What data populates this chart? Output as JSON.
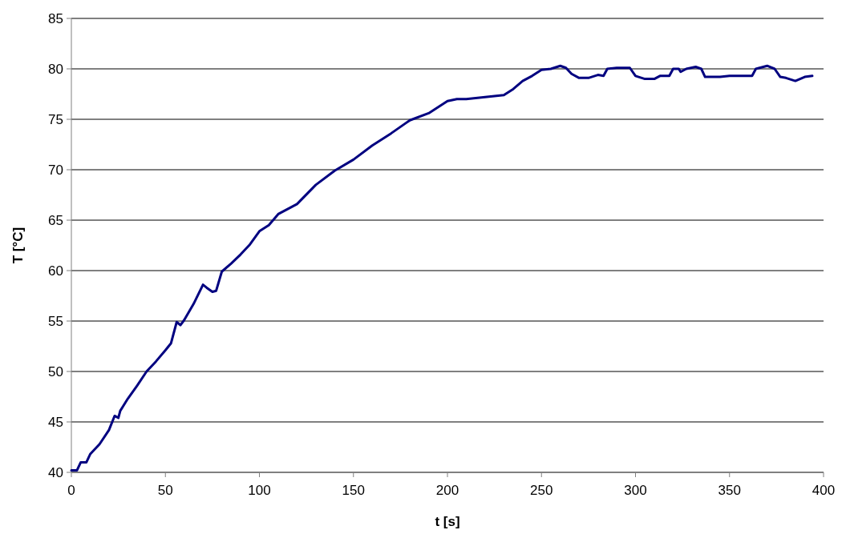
{
  "chart_data": {
    "type": "line",
    "xlabel": "t [s]",
    "ylabel": "T [°C]",
    "xlim": [
      0,
      400
    ],
    "xticks": [
      0,
      50,
      100,
      150,
      200,
      250,
      300,
      350,
      400
    ],
    "ylim": [
      40,
      85
    ],
    "yticks": [
      40,
      45,
      50,
      55,
      60,
      65,
      70,
      75,
      80,
      85
    ],
    "grid": "y",
    "marker": "none",
    "line_style": "solid",
    "x": [
      0,
      3,
      5,
      8,
      10,
      15,
      20,
      23,
      25,
      26,
      30,
      35,
      40,
      45,
      50,
      53,
      56,
      58,
      60,
      65,
      70,
      72,
      75,
      77,
      80,
      85,
      90,
      95,
      100,
      105,
      110,
      120,
      130,
      140,
      150,
      160,
      170,
      180,
      190,
      200,
      205,
      210,
      220,
      230,
      235,
      240,
      245,
      250,
      255,
      260,
      263,
      266,
      270,
      275,
      280,
      283,
      285,
      290,
      297,
      300,
      305,
      310,
      313,
      318,
      320,
      323,
      324,
      327,
      332,
      335,
      337,
      345,
      350,
      360,
      362,
      364,
      370,
      374,
      377,
      380,
      385,
      390,
      394
    ],
    "series": [
      {
        "color": "#000080",
        "values": [
          40.2,
          40.2,
          41,
          41,
          41.8,
          42.8,
          44.2,
          45.6,
          45.4,
          46.1,
          47.3,
          48.6,
          50,
          51,
          52.1,
          52.8,
          54.9,
          54.6,
          55.1,
          56.7,
          58.6,
          58.3,
          57.9,
          58,
          59.9,
          60.7,
          61.6,
          62.6,
          63.9,
          64.5,
          65.6,
          66.6,
          68.5,
          69.9,
          71,
          72.4,
          73.6,
          74.9,
          75.6,
          76.8,
          77,
          77,
          77.2,
          77.4,
          78,
          78.8,
          79.3,
          79.9,
          80,
          80.3,
          80.1,
          79.5,
          79.1,
          79.1,
          79.4,
          79.3,
          80,
          80.1,
          80.1,
          79.3,
          79,
          79,
          79.3,
          79.3,
          80,
          80,
          79.7,
          80,
          80.2,
          80,
          79.2,
          79.2,
          79.3,
          79.3,
          79.3,
          80,
          80.3,
          80,
          79.2,
          79.1,
          78.8,
          79.2,
          79.3
        ]
      }
    ]
  }
}
